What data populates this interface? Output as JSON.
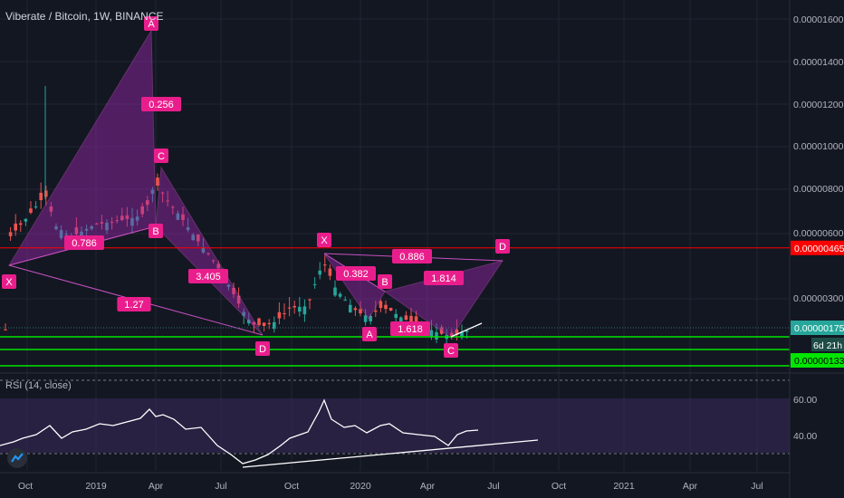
{
  "header": {
    "title": "Viberate / Bitcoin, 1W, BINANCE"
  },
  "rsi_panel": {
    "label": "RSI (14, close)",
    "ticks": [
      "60.00",
      "40.00"
    ]
  },
  "badges": {
    "price_red": "0.00000465",
    "price_current": "0.00000175",
    "countdown": "6d 21h",
    "price_green": "0.00000133"
  },
  "colors": {
    "background": "#131722",
    "up_candle": "#26a69a",
    "down_candle": "#ef5350",
    "pattern_fill": "#9c27b0",
    "pattern_label": "#e91e8c",
    "red_line": "#ff0000",
    "green_line": "#00e600",
    "rsi_band": "#3a2a5c"
  },
  "chart_data": [
    {
      "type": "line",
      "title": "Viberate / Bitcoin, 1W, BINANCE",
      "x_ticks": [
        "Oct",
        "2019",
        "Apr",
        "Jul",
        "Oct",
        "2020",
        "Apr",
        "Jul",
        "Oct",
        "2021",
        "Apr",
        "Jul"
      ],
      "y_ticks": [
        "0.00001600",
        "0.00001400",
        "0.00001200",
        "0.00001000",
        "0.00000800",
        "0.00000600",
        "0.00000300"
      ],
      "yscale": "log",
      "approx_close": [
        {
          "x": "2018-09",
          "y": 4.2e-06
        },
        {
          "x": "2018-10",
          "y": 4.8e-06
        },
        {
          "x": "2018-11",
          "y": 6.6e-06
        },
        {
          "x": "2018-12",
          "y": 5e-06
        },
        {
          "x": "2019-01",
          "y": 5.2e-06
        },
        {
          "x": "2019-02",
          "y": 5e-06
        },
        {
          "x": "2019-03",
          "y": 6e-06
        },
        {
          "x": "2019-04",
          "y": 8e-06
        },
        {
          "x": "2019-05",
          "y": 6e-06
        },
        {
          "x": "2019-06",
          "y": 4.5e-06
        },
        {
          "x": "2019-07",
          "y": 2.2e-06
        },
        {
          "x": "2019-08",
          "y": 2.1e-06
        },
        {
          "x": "2019-09",
          "y": 2.5e-06
        },
        {
          "x": "2019-10",
          "y": 2.7e-06
        },
        {
          "x": "2019-11",
          "y": 3.5e-06
        },
        {
          "x": "2019-12",
          "y": 3e-06
        },
        {
          "x": "2020-01",
          "y": 2.2e-06
        },
        {
          "x": "2020-02",
          "y": 2.6e-06
        },
        {
          "x": "2020-03",
          "y": 2.2e-06
        },
        {
          "x": "2020-04",
          "y": 1.9e-06
        },
        {
          "x": "2020-05",
          "y": 1.7e-06
        },
        {
          "x": "2020-06",
          "y": 1.75e-06
        }
      ],
      "horizontal_levels": [
        {
          "value": 4.65e-06,
          "color": "#ff0000"
        },
        {
          "value": 1.33e-06,
          "color": "#00e600"
        }
      ],
      "harmonic_labels": [
        "A",
        "0.256",
        "C",
        "0.786",
        "B",
        "X",
        "3.405",
        "1.27",
        "D",
        "X",
        "0.886",
        "D",
        "0.382",
        "B",
        "1.814",
        "A",
        "1.618",
        "C"
      ],
      "grid": true
    },
    {
      "type": "line",
      "title": "RSI (14, close)",
      "y_ticks": [
        "60.00",
        "40.00"
      ],
      "approx_values": [
        {
          "x": "2018-09",
          "y": 35
        },
        {
          "x": "2018-10",
          "y": 40
        },
        {
          "x": "2018-11",
          "y": 48
        },
        {
          "x": "2018-12",
          "y": 42
        },
        {
          "x": "2019-01",
          "y": 46
        },
        {
          "x": "2019-02",
          "y": 44
        },
        {
          "x": "2019-03",
          "y": 53
        },
        {
          "x": "2019-04",
          "y": 52
        },
        {
          "x": "2019-05",
          "y": 46
        },
        {
          "x": "2019-06",
          "y": 40
        },
        {
          "x": "2019-07",
          "y": 27
        },
        {
          "x": "2019-08",
          "y": 29
        },
        {
          "x": "2019-09",
          "y": 36
        },
        {
          "x": "2019-10",
          "y": 40
        },
        {
          "x": "2019-11",
          "y": 60
        },
        {
          "x": "2019-12",
          "y": 48
        },
        {
          "x": "2020-01",
          "y": 44
        },
        {
          "x": "2020-02",
          "y": 47
        },
        {
          "x": "2020-03",
          "y": 42
        },
        {
          "x": "2020-04",
          "y": 38
        },
        {
          "x": "2020-05",
          "y": 40
        },
        {
          "x": "2020-06",
          "y": 43
        }
      ]
    }
  ]
}
